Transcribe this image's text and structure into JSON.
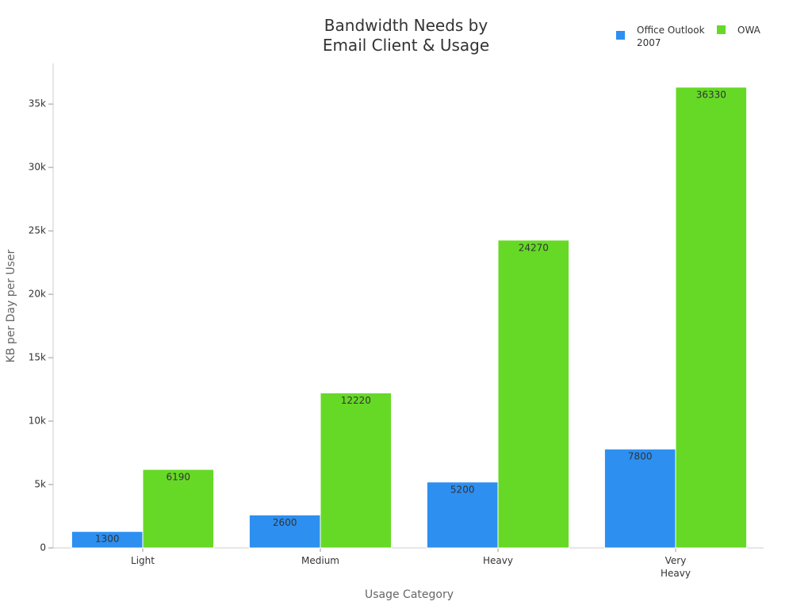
{
  "chart_data": {
    "type": "bar",
    "title": "Bandwidth Needs by Email Client & Usage",
    "x_label": "Usage Category",
    "y_label": "KB per Day per User",
    "categories": [
      "Light",
      "Medium",
      "Heavy",
      "Very Heavy"
    ],
    "series": [
      {
        "name": "Office Outlook 2007",
        "color": "#2d8ff0",
        "values": [
          1300,
          2600,
          5200,
          7800
        ]
      },
      {
        "name": "OWA",
        "color": "#66d926",
        "values": [
          6190,
          12220,
          24270,
          36330
        ]
      }
    ],
    "ylim": [
      0,
      38200
    ],
    "yticks": [
      0,
      {
        "value": 5000,
        "label": "5k"
      },
      {
        "value": 10000,
        "label": "10k"
      },
      {
        "value": 15000,
        "label": "15k"
      },
      {
        "value": 20000,
        "label": "20k"
      },
      {
        "value": 25000,
        "label": "25k"
      },
      {
        "value": 30000,
        "label": "30k"
      },
      {
        "value": 35000,
        "label": "35k"
      }
    ],
    "grid": false,
    "legend": "top-right"
  }
}
